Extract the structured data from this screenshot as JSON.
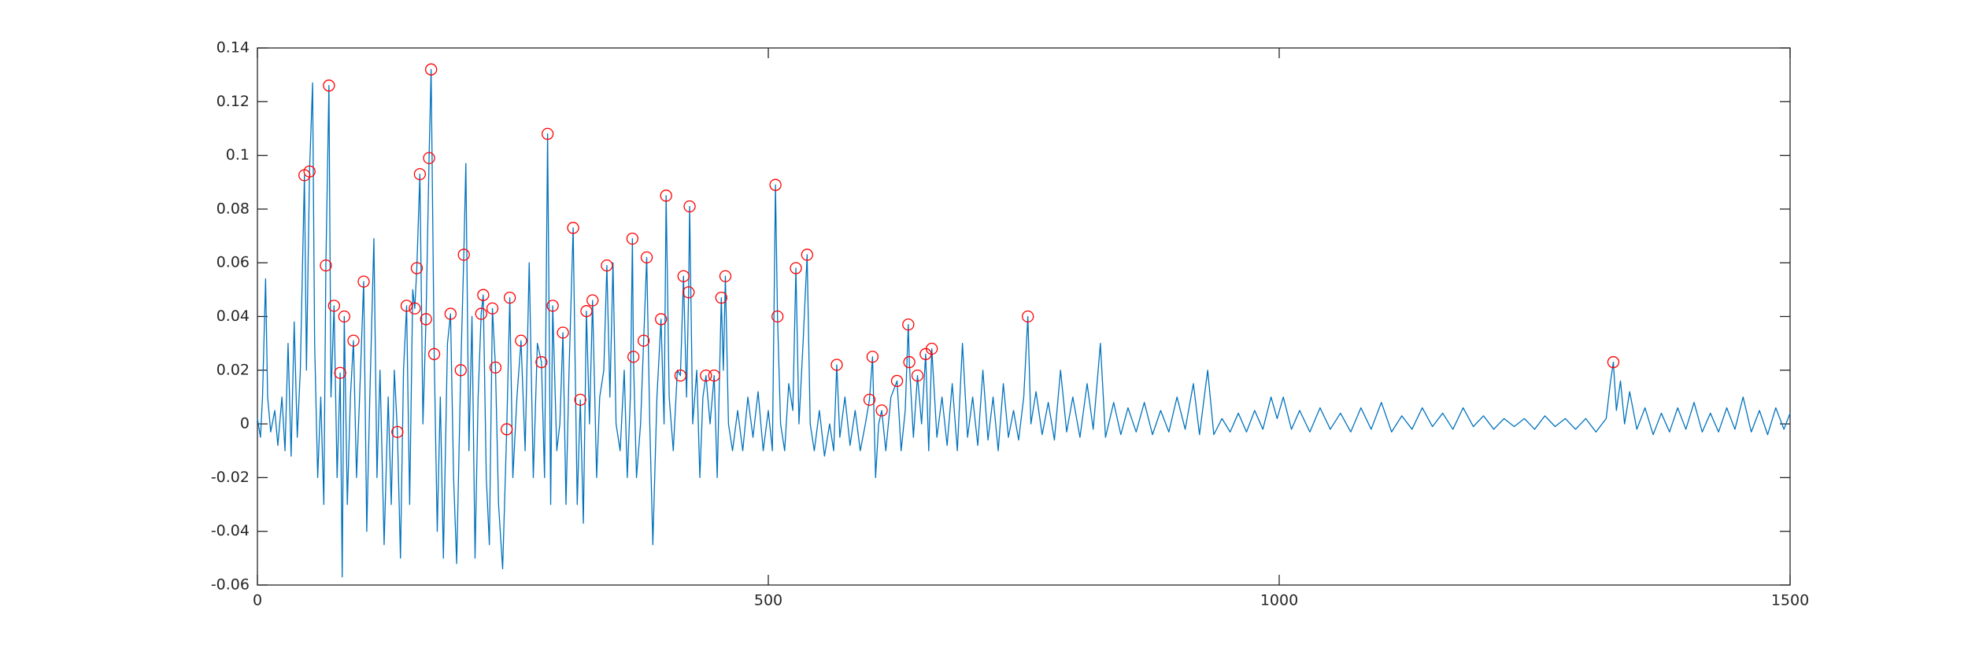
{
  "chart_data": {
    "type": "line",
    "xlim": [
      0,
      1500
    ],
    "xticks": [
      0,
      500,
      1000,
      1500
    ],
    "ylim": [
      -0.06,
      0.14
    ],
    "yticks": [
      -0.06,
      -0.04,
      -0.02,
      0,
      0.02,
      0.04,
      0.06,
      0.08,
      0.1,
      0.12,
      0.14
    ],
    "series": [
      {
        "color": "#0072bd",
        "style": "line",
        "x": [
          0,
          3,
          5,
          8,
          10,
          13,
          17,
          20,
          24,
          27,
          30,
          33,
          36,
          39,
          42,
          46,
          48,
          51,
          54,
          56,
          59,
          62,
          65,
          67,
          70,
          72,
          75,
          78,
          81,
          83,
          85,
          88,
          91,
          94,
          97,
          100,
          104,
          107,
          110,
          114,
          117,
          120,
          124,
          128,
          131,
          134,
          137,
          140,
          143,
          146,
          149,
          152,
          154,
          156,
          159,
          162,
          165,
          168,
          170,
          173,
          176,
          179,
          182,
          186,
          189,
          192,
          195,
          199,
          202,
          204,
          207,
          210,
          213,
          216,
          219,
          221,
          224,
          227,
          230,
          233,
          236,
          240,
          244,
          247,
          250,
          254,
          258,
          262,
          266,
          270,
          274,
          278,
          281,
          284,
          287,
          289,
          293,
          296,
          299,
          302,
          305,
          309,
          313,
          316,
          319,
          322,
          325,
          328,
          332,
          335,
          339,
          342,
          345,
          348,
          351,
          355,
          359,
          362,
          365,
          367,
          368,
          371,
          375,
          378,
          381,
          384,
          387,
          391,
          395,
          398,
          400,
          403,
          407,
          411,
          414,
          417,
          420,
          422,
          423,
          426,
          430,
          433,
          436,
          439,
          443,
          447,
          450,
          454,
          456,
          458,
          461,
          465,
          470,
          475,
          480,
          485,
          490,
          495,
          500,
          504,
          507,
          509,
          512,
          516,
          520,
          524,
          527,
          530,
          534,
          538,
          541,
          545,
          550,
          555,
          560,
          564,
          567,
          570,
          575,
          580,
          585,
          590,
          595,
          599,
          602,
          605,
          608,
          611,
          615,
          620,
          626,
          630,
          634,
          637,
          638,
          642,
          646,
          650,
          654,
          657,
          660,
          665,
          670,
          675,
          680,
          685,
          690,
          695,
          700,
          705,
          710,
          715,
          720,
          725,
          730,
          735,
          740,
          745,
          750,
          754,
          757,
          762,
          768,
          774,
          780,
          786,
          792,
          798,
          805,
          812,
          818,
          825,
          830,
          838,
          845,
          852,
          860,
          868,
          876,
          884,
          892,
          900,
          908,
          916,
          922,
          930,
          936,
          944,
          952,
          960,
          968,
          976,
          984,
          992,
          998,
          1004,
          1012,
          1020,
          1030,
          1040,
          1050,
          1060,
          1070,
          1080,
          1090,
          1100,
          1110,
          1120,
          1130,
          1140,
          1150,
          1160,
          1170,
          1180,
          1190,
          1200,
          1210,
          1220,
          1230,
          1240,
          1250,
          1260,
          1270,
          1280,
          1290,
          1300,
          1310,
          1320,
          1324,
          1327,
          1330,
          1334,
          1338,
          1343,
          1350,
          1358,
          1366,
          1374,
          1382,
          1390,
          1398,
          1406,
          1414,
          1422,
          1430,
          1438,
          1446,
          1454,
          1462,
          1470,
          1478,
          1486,
          1494,
          1500
        ],
        "values": [
          0.002,
          -0.005,
          0.01,
          0.054,
          0.01,
          -0.003,
          0.005,
          -0.008,
          0.01,
          -0.01,
          0.03,
          -0.012,
          0.038,
          -0.005,
          0.02,
          0.0926,
          0.02,
          0.094,
          0.127,
          0.03,
          -0.02,
          0.01,
          -0.03,
          0.059,
          0.126,
          0.01,
          0.044,
          -0.02,
          0.019,
          -0.057,
          0.04,
          -0.03,
          0.01,
          0.031,
          -0.02,
          0.01,
          0.053,
          -0.04,
          0.01,
          0.069,
          -0.02,
          0.02,
          -0.045,
          0.01,
          -0.03,
          0.02,
          -0.003,
          -0.05,
          0.02,
          0.044,
          -0.03,
          0.05,
          0.043,
          0.058,
          0.093,
          0.0,
          0.039,
          0.099,
          0.132,
          0.026,
          -0.04,
          0.01,
          -0.05,
          0.03,
          0.041,
          -0.02,
          -0.052,
          0.02,
          0.063,
          0.097,
          -0.01,
          0.04,
          -0.05,
          0.01,
          0.041,
          0.048,
          -0.02,
          -0.045,
          0.043,
          0.021,
          -0.03,
          -0.054,
          -0.002,
          0.047,
          -0.02,
          0.01,
          0.031,
          -0.01,
          0.06,
          -0.02,
          0.03,
          0.023,
          -0.02,
          0.108,
          -0.03,
          0.044,
          -0.01,
          0.0,
          0.034,
          -0.03,
          0.02,
          0.073,
          -0.03,
          0.009,
          -0.037,
          0.042,
          0.0,
          0.046,
          -0.02,
          0.01,
          0.02,
          0.059,
          0.01,
          0.06,
          0.0,
          -0.01,
          0.02,
          -0.02,
          0.01,
          0.069,
          0.025,
          -0.02,
          0.0,
          0.031,
          0.062,
          0.0,
          -0.045,
          0.01,
          0.039,
          0.0,
          0.085,
          0.01,
          -0.01,
          0.02,
          0.018,
          0.055,
          0.01,
          0.049,
          0.081,
          0.0,
          0.02,
          -0.02,
          0.01,
          0.018,
          0.0,
          0.018,
          -0.02,
          0.047,
          0.02,
          0.055,
          0.0,
          -0.01,
          0.005,
          -0.01,
          0.01,
          -0.005,
          0.012,
          -0.01,
          0.005,
          -0.01,
          0.089,
          0.04,
          0.0,
          -0.01,
          0.015,
          0.005,
          0.058,
          0.0,
          0.03,
          0.063,
          0.0,
          -0.01,
          0.005,
          -0.012,
          0.0,
          -0.01,
          0.022,
          -0.005,
          0.01,
          -0.008,
          0.005,
          -0.01,
          0.0,
          0.009,
          0.025,
          -0.02,
          0.0,
          0.005,
          -0.01,
          0.01,
          0.016,
          -0.01,
          0.005,
          0.037,
          0.023,
          -0.005,
          0.018,
          0.0,
          0.026,
          -0.01,
          0.028,
          -0.005,
          0.01,
          -0.008,
          0.015,
          -0.01,
          0.03,
          -0.005,
          0.01,
          -0.008,
          0.02,
          -0.006,
          0.01,
          -0.01,
          0.015,
          -0.005,
          0.005,
          -0.006,
          0.01,
          0.04,
          0.0,
          0.012,
          -0.004,
          0.008,
          -0.006,
          0.02,
          -0.003,
          0.01,
          -0.005,
          0.015,
          -0.002,
          0.03,
          -0.005,
          0.008,
          -0.004,
          0.006,
          -0.003,
          0.008,
          -0.004,
          0.005,
          -0.003,
          0.01,
          -0.002,
          0.015,
          -0.004,
          0.02,
          -0.004,
          0.002,
          -0.003,
          0.004,
          -0.003,
          0.005,
          -0.002,
          0.01,
          0.002,
          0.01,
          -0.002,
          0.005,
          -0.003,
          0.006,
          -0.002,
          0.004,
          -0.003,
          0.006,
          -0.002,
          0.008,
          -0.003,
          0.003,
          -0.002,
          0.006,
          -0.001,
          0.004,
          -0.002,
          0.006,
          -0.001,
          0.003,
          -0.002,
          0.002,
          -0.001,
          0.002,
          -0.002,
          0.003,
          -0.001,
          0.002,
          -0.002,
          0.002,
          -0.003,
          0.002,
          0.015,
          0.023,
          0.005,
          0.016,
          0.0,
          0.012,
          -0.002,
          0.006,
          -0.004,
          0.004,
          -0.003,
          0.006,
          -0.002,
          0.008,
          -0.003,
          0.004,
          -0.003,
          0.006,
          -0.002,
          0.01,
          -0.003,
          0.005,
          -0.004,
          0.006,
          -0.002,
          0.004
        ]
      },
      {
        "color": "#ff0000",
        "style": "marker",
        "x": [
          46,
          51,
          70,
          67,
          75,
          85,
          81,
          94,
          104,
          137,
          146,
          154,
          156,
          159,
          165,
          168,
          170,
          173,
          189,
          199,
          202,
          219,
          221,
          230,
          233,
          244,
          247,
          258,
          278,
          284,
          289,
          299,
          309,
          316,
          322,
          328,
          342,
          367,
          368,
          378,
          381,
          395,
          400,
          414,
          417,
          422,
          423,
          439,
          447,
          454,
          458,
          507,
          509,
          527,
          538,
          567,
          599,
          602,
          611,
          626,
          637,
          638,
          646,
          654,
          660,
          754,
          1327
        ],
        "values": [
          0.0926,
          0.094,
          0.126,
          0.059,
          0.044,
          0.04,
          0.019,
          0.031,
          0.053,
          -0.003,
          0.044,
          0.043,
          0.058,
          0.093,
          0.039,
          0.099,
          0.132,
          0.026,
          0.041,
          0.02,
          0.063,
          0.041,
          0.048,
          0.043,
          0.021,
          -0.002,
          0.047,
          0.031,
          0.023,
          0.108,
          0.044,
          0.034,
          0.073,
          0.009,
          0.042,
          0.046,
          0.059,
          0.069,
          0.025,
          0.031,
          0.062,
          0.039,
          0.085,
          0.018,
          0.055,
          0.049,
          0.081,
          0.018,
          0.018,
          0.047,
          0.055,
          0.089,
          0.04,
          0.058,
          0.063,
          0.022,
          0.009,
          0.025,
          0.005,
          0.016,
          0.037,
          0.023,
          0.018,
          0.026,
          0.028,
          0.04,
          0.023
        ]
      }
    ]
  }
}
